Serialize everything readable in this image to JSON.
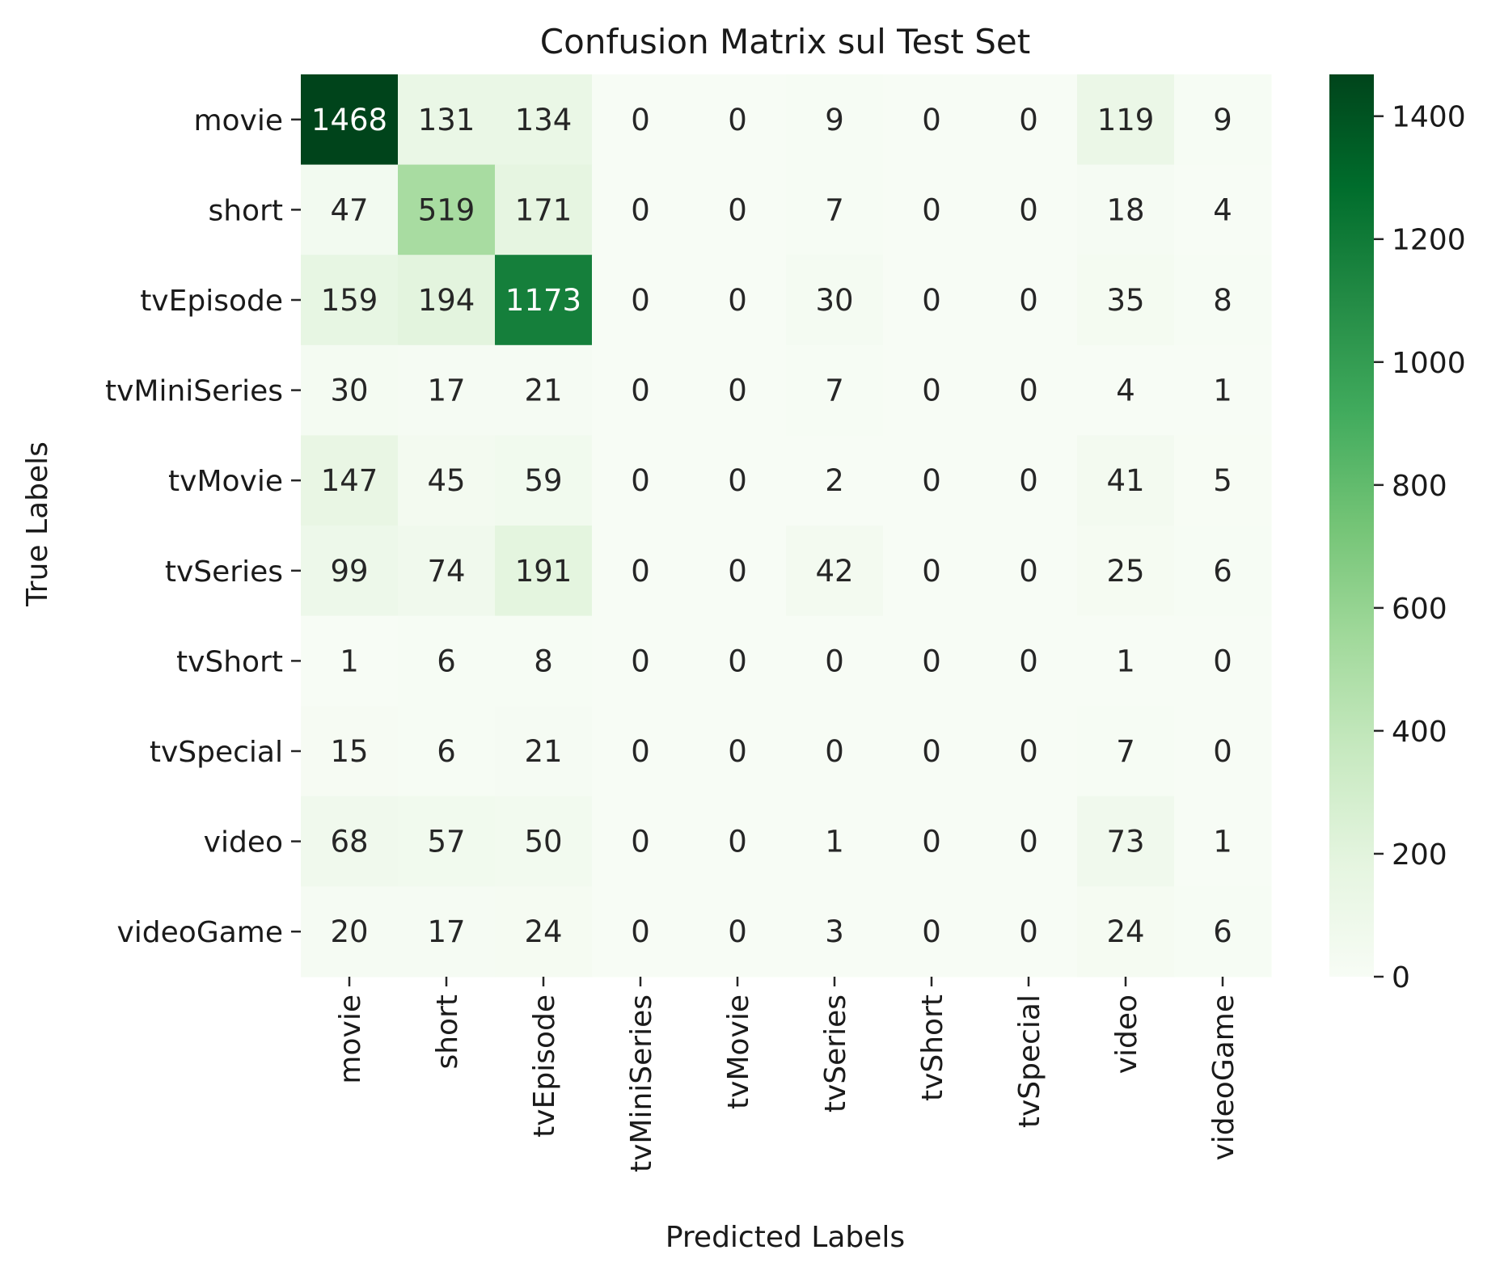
{
  "chart_data": {
    "type": "heatmap",
    "title": "Confusion Matrix sul Test Set",
    "xlabel": "Predicted Labels",
    "ylabel": "True Labels",
    "x_categories": [
      "movie",
      "short",
      "tvEpisode",
      "tvMiniSeries",
      "tvMovie",
      "tvSeries",
      "tvShort",
      "tvSpecial",
      "video",
      "videoGame"
    ],
    "y_categories": [
      "movie",
      "short",
      "tvEpisode",
      "tvMiniSeries",
      "tvMovie",
      "tvSeries",
      "tvShort",
      "tvSpecial",
      "video",
      "videoGame"
    ],
    "values": [
      [
        1468,
        131,
        134,
        0,
        0,
        9,
        0,
        0,
        119,
        9
      ],
      [
        47,
        519,
        171,
        0,
        0,
        7,
        0,
        0,
        18,
        4
      ],
      [
        159,
        194,
        1173,
        0,
        0,
        30,
        0,
        0,
        35,
        8
      ],
      [
        30,
        17,
        21,
        0,
        0,
        7,
        0,
        0,
        4,
        1
      ],
      [
        147,
        45,
        59,
        0,
        0,
        2,
        0,
        0,
        41,
        5
      ],
      [
        99,
        74,
        191,
        0,
        0,
        42,
        0,
        0,
        25,
        6
      ],
      [
        1,
        6,
        8,
        0,
        0,
        0,
        0,
        0,
        1,
        0
      ],
      [
        15,
        6,
        21,
        0,
        0,
        0,
        0,
        0,
        7,
        0
      ],
      [
        68,
        57,
        50,
        0,
        0,
        1,
        0,
        0,
        73,
        1
      ],
      [
        20,
        17,
        24,
        0,
        0,
        3,
        0,
        0,
        24,
        6
      ]
    ],
    "colormap": "Greens",
    "color_range": [
      0,
      1468
    ],
    "colorbar_ticks": [
      0,
      200,
      400,
      600,
      800,
      1000,
      1200,
      1400
    ],
    "colors": {
      "low": "#f7fcf5",
      "high": "#00441b",
      "text_dark": "#262626",
      "text_light": "#ffffff"
    }
  }
}
